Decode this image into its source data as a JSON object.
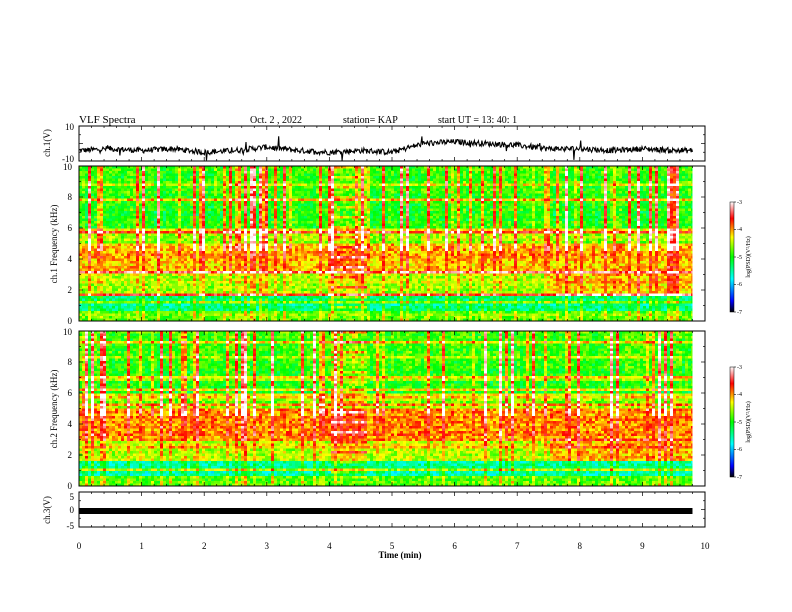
{
  "header": {
    "title": "VLF Spectra",
    "date": "Oct. 2 , 2022",
    "station": "station= KAP",
    "start": "start UT = 13: 40: 1"
  },
  "chart_data": [
    {
      "type": "line",
      "panel": "ch1-waveform",
      "ylabel": "ch.1(V)",
      "ylim": [
        -10,
        10
      ],
      "yticks": [
        "10",
        "-10"
      ],
      "xlim": [
        0,
        10
      ],
      "x_min": [
        0,
        0.5,
        1.0,
        1.5,
        2.0,
        2.5,
        3.0,
        3.5,
        4.0,
        4.5,
        5.0,
        5.5,
        6.0,
        6.5,
        7.0,
        7.5,
        8.0,
        8.5,
        9.0,
        9.5,
        9.8
      ],
      "y_volts": [
        -4,
        -3,
        -4,
        -3,
        -5,
        -4,
        -2,
        -4,
        -5,
        -4,
        -5,
        0,
        1,
        0,
        -1,
        -3,
        -3,
        -4,
        -3,
        -4,
        -4
      ]
    },
    {
      "type": "heatmap",
      "panel": "ch1-spectrogram",
      "ylabel": "ch.1 Frequency (kHz)",
      "ylim": [
        0,
        10
      ],
      "yticks": [
        "0",
        "2",
        "4",
        "6",
        "8",
        "10"
      ],
      "xlim": [
        0,
        10
      ],
      "data_end_min": 9.8,
      "colorbar": {
        "label": "log(PSD)(V²/Hz)",
        "range": [
          -7,
          -3
        ],
        "ticks": [
          "-3",
          "-4",
          "-5",
          "-6",
          "-7"
        ]
      }
    },
    {
      "type": "heatmap",
      "panel": "ch2-spectrogram",
      "ylabel": "ch.2 Frequency (kHz)",
      "ylim": [
        0,
        10
      ],
      "yticks": [
        "0",
        "2",
        "4",
        "6",
        "8",
        "10"
      ],
      "xlim": [
        0,
        10
      ],
      "data_end_min": 9.8,
      "colorbar": {
        "label": "log(PSD)(V²/Hz)",
        "range": [
          -7,
          -3
        ],
        "ticks": [
          "-3",
          "-4",
          "-5",
          "-6",
          "-7"
        ]
      }
    },
    {
      "type": "line",
      "panel": "ch3-waveform",
      "ylabel": "ch.3(V)",
      "ylim": [
        -5,
        5
      ],
      "yticks": [
        "5",
        "0",
        "-5"
      ],
      "xlim": [
        0,
        10
      ],
      "xlabel": "Time (min)",
      "xticks": [
        "0",
        "1",
        "2",
        "3",
        "4",
        "5",
        "6",
        "7",
        "8",
        "9",
        "10"
      ],
      "x_min": [
        0,
        9.8
      ],
      "y_volts": [
        0,
        0
      ]
    }
  ],
  "colors": {
    "colormap": [
      "#000000",
      "#0000ff",
      "#00ffff",
      "#00ff00",
      "#ffff00",
      "#ff0000",
      "#ffffff"
    ]
  }
}
